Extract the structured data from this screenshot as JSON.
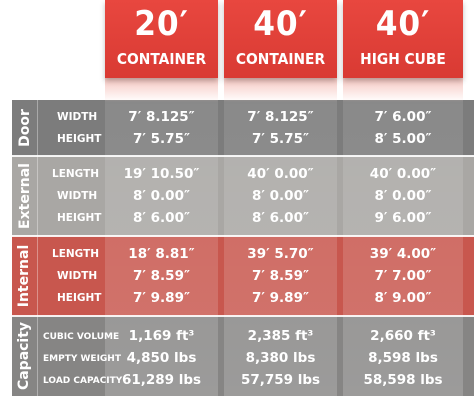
{
  "colors": {
    "header_red": "#e03f37",
    "door_gray": "#7c7c7c",
    "external_gray": "#a8a6a3",
    "internal_red": "#c9574e",
    "capacity_gray": "#858484"
  },
  "columns": [
    {
      "big": "20′",
      "small": "CONTAINER"
    },
    {
      "big": "40′",
      "small": "CONTAINER"
    },
    {
      "big": "40′",
      "small": "HIGH CUBE"
    }
  ],
  "sections": {
    "door": {
      "label": "Door",
      "rows": [
        {
          "label": "WIDTH",
          "values": [
            "7′ 8.125″",
            "7′ 8.125″",
            "7′ 6.00″"
          ]
        },
        {
          "label": "HEIGHT",
          "values": [
            "7′ 5.75″",
            "7′ 5.75″",
            "8′ 5.00″"
          ]
        }
      ]
    },
    "external": {
      "label": "External",
      "rows": [
        {
          "label": "LENGTH",
          "values": [
            "19′ 10.50″",
            "40′ 0.00″",
            "40′ 0.00″"
          ]
        },
        {
          "label": "WIDTH",
          "values": [
            "8′ 0.00″",
            "8′ 0.00″",
            "8′ 0.00″"
          ]
        },
        {
          "label": "HEIGHT",
          "values": [
            "8′ 6.00″",
            "8′ 6.00″",
            "9′ 6.00″"
          ]
        }
      ]
    },
    "internal": {
      "label": "Internal",
      "rows": [
        {
          "label": "LENGTH",
          "values": [
            "18′ 8.81″",
            "39′ 5.70″",
            "39′ 4.00″"
          ]
        },
        {
          "label": "WIDTH",
          "values": [
            "7′ 8.59″",
            "7′ 8.59″",
            "7′ 7.00″"
          ]
        },
        {
          "label": "HEIGHT",
          "values": [
            "7′ 9.89″",
            "7′ 9.89″",
            "8′ 9.00″"
          ]
        }
      ]
    },
    "capacity": {
      "label": "Capacity",
      "rows": [
        {
          "label": "CUBIC VOLUME",
          "values": [
            "1,169 ft³",
            "2,385 ft³",
            "2,660 ft³"
          ]
        },
        {
          "label": "EMPTY WEIGHT",
          "values": [
            "4,850 lbs",
            "8,380 lbs",
            "8,598 lbs"
          ]
        },
        {
          "label": "LOAD CAPACITY",
          "values": [
            "61,289 lbs",
            "57,759 lbs",
            "58,598 lbs"
          ]
        }
      ]
    }
  }
}
